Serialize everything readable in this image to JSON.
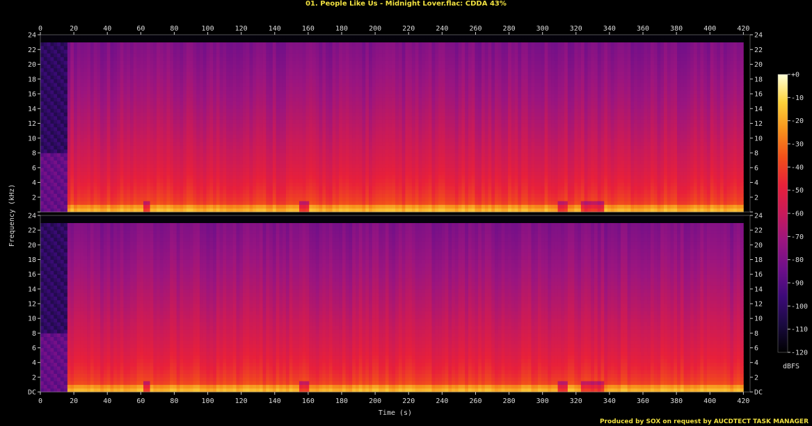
{
  "window": {
    "title": "01. People Like Us - Midnight Lover.flac: CDDA 43%",
    "credit": "Produced by SOX on request by AUCDTECT TASK MANAGER"
  },
  "chart_data": {
    "type": "heatmap",
    "title": "01. People Like Us - Midnight Lover.flac: CDDA 43%",
    "xlabel": "Time (s)",
    "ylabel": "Frequency (kHz)",
    "colorbar_label": "dBFS",
    "xlim": [
      0,
      424
    ],
    "ylim": [
      0,
      24
    ],
    "x_ticks": [
      "0",
      "20",
      "40",
      "60",
      "80",
      "100",
      "120",
      "140",
      "160",
      "180",
      "200",
      "220",
      "240",
      "260",
      "280",
      "300",
      "320",
      "340",
      "360",
      "380",
      "400",
      "420"
    ],
    "y_ticks": [
      "DC",
      "2",
      "4",
      "6",
      "8",
      "10",
      "12",
      "14",
      "16",
      "18",
      "20",
      "22",
      "24"
    ],
    "colorbar_range": [
      -120,
      0
    ],
    "colorbar_ticks": [
      "+0",
      "-10",
      "-20",
      "-30",
      "-40",
      "-50",
      "-60",
      "-70",
      "-80",
      "-90",
      "-100",
      "-110",
      "-120"
    ],
    "channels": [
      "left",
      "right"
    ],
    "colors": [
      "#000000",
      "#1a0a40",
      "#3c0a78",
      "#6e0f8a",
      "#9a1580",
      "#c81a5a",
      "#e8203a",
      "#f24f1a",
      "#f7921c",
      "#fcd23a",
      "#ffffd8"
    ],
    "profile": {
      "audio_start_s": 16,
      "audio_end_s": 420,
      "quiet_intro_end_s": 16,
      "upper_band_dbfs": -80,
      "lower_band_dbfs": -30,
      "cutoff_khz": 23,
      "dips_s": [
        [
          60,
          65
        ],
        [
          154,
          159
        ],
        [
          308,
          315
        ],
        [
          322,
          336
        ]
      ]
    }
  }
}
